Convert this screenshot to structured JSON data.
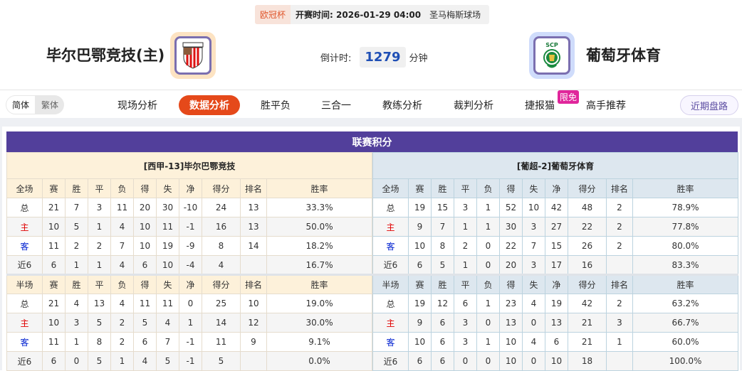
{
  "match": {
    "competition": "欧冠杯",
    "kickoff": "开赛时间: 2026-01-29 04:00",
    "venue": "圣马梅斯球场"
  },
  "home_team": {
    "name": "毕尔巴鄂竞技(主)",
    "logo": "athletic-bilbao-crest"
  },
  "away_team": {
    "name": "葡萄牙体育",
    "logo": "sporting-cp-crest"
  },
  "countdown": {
    "label": "倒计时:",
    "value": "1279",
    "unit": "分钟"
  },
  "language": {
    "simplified": "简体",
    "traditional": "繁体"
  },
  "nav": {
    "items": [
      "现场分析",
      "数据分析",
      "胜平负",
      "三合一",
      "教练分析",
      "裁判分析",
      "捷报猫",
      "高手推荐"
    ],
    "active": "数据分析",
    "badge": "限免",
    "recent": "近期盘路"
  },
  "colors": {
    "accent": "#e5491a",
    "title_bar": "#523f9b",
    "home_label": "#e00000",
    "away_label": "#0020d0"
  },
  "standings": {
    "title": "联赛积分",
    "columns_full": [
      "全场",
      "赛",
      "胜",
      "平",
      "负",
      "得",
      "失",
      "净",
      "得分",
      "排名",
      "胜率"
    ],
    "columns_half": [
      "半场",
      "赛",
      "胜",
      "平",
      "负",
      "得",
      "失",
      "净",
      "得分",
      "排名",
      "胜率"
    ],
    "home": {
      "header": "[西甲-13]毕尔巴鄂竞技",
      "full": [
        [
          "总",
          "21",
          "7",
          "3",
          "11",
          "20",
          "30",
          "-10",
          "24",
          "13",
          "33.3%"
        ],
        [
          "主",
          "10",
          "5",
          "1",
          "4",
          "10",
          "11",
          "-1",
          "16",
          "13",
          "50.0%"
        ],
        [
          "客",
          "11",
          "2",
          "2",
          "7",
          "10",
          "19",
          "-9",
          "8",
          "14",
          "18.2%"
        ],
        [
          "近6",
          "6",
          "1",
          "1",
          "4",
          "6",
          "10",
          "-4",
          "4",
          "",
          "16.7%"
        ]
      ],
      "half": [
        [
          "总",
          "21",
          "4",
          "13",
          "4",
          "11",
          "11",
          "0",
          "25",
          "10",
          "19.0%"
        ],
        [
          "主",
          "10",
          "3",
          "5",
          "2",
          "5",
          "4",
          "1",
          "14",
          "12",
          "30.0%"
        ],
        [
          "客",
          "11",
          "1",
          "8",
          "2",
          "6",
          "7",
          "-1",
          "11",
          "9",
          "9.1%"
        ],
        [
          "近6",
          "6",
          "0",
          "5",
          "1",
          "4",
          "5",
          "-1",
          "5",
          "",
          "0.0%"
        ]
      ]
    },
    "away": {
      "header": "[葡超-2]葡萄牙体育",
      "full": [
        [
          "总",
          "19",
          "15",
          "3",
          "1",
          "52",
          "10",
          "42",
          "48",
          "2",
          "78.9%"
        ],
        [
          "主",
          "9",
          "7",
          "1",
          "1",
          "30",
          "3",
          "27",
          "22",
          "2",
          "77.8%"
        ],
        [
          "客",
          "10",
          "8",
          "2",
          "0",
          "22",
          "7",
          "15",
          "26",
          "2",
          "80.0%"
        ],
        [
          "近6",
          "6",
          "5",
          "1",
          "0",
          "20",
          "3",
          "17",
          "16",
          "",
          "83.3%"
        ]
      ],
      "half": [
        [
          "总",
          "19",
          "12",
          "6",
          "1",
          "23",
          "4",
          "19",
          "42",
          "2",
          "63.2%"
        ],
        [
          "主",
          "9",
          "6",
          "3",
          "0",
          "13",
          "0",
          "13",
          "21",
          "3",
          "66.7%"
        ],
        [
          "客",
          "10",
          "6",
          "3",
          "1",
          "10",
          "4",
          "6",
          "21",
          "1",
          "60.0%"
        ],
        [
          "近6",
          "6",
          "6",
          "0",
          "0",
          "10",
          "0",
          "10",
          "18",
          "",
          "100.0%"
        ]
      ]
    }
  }
}
